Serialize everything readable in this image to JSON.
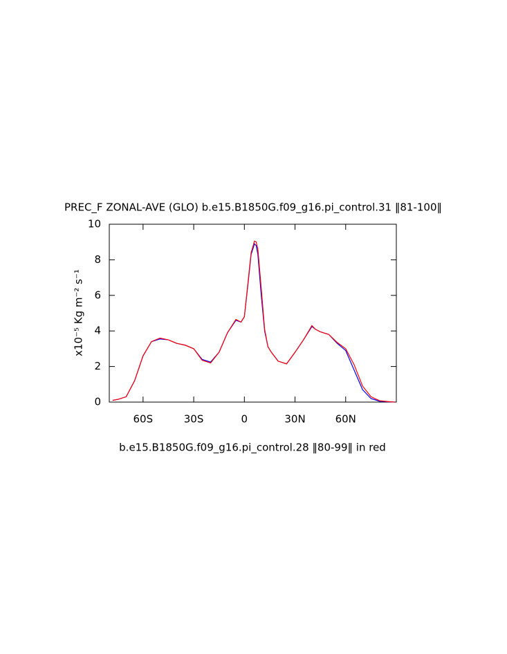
{
  "chart_data": {
    "type": "line",
    "title": "PREC_F ZONAL-AVE (GLO) b.e15.B1850G.f09_g16.pi_control.31 ‖81-100‖",
    "subtitle": "b.e15.B1850G.f09_g16.pi_control.28 ‖80-99‖ in red",
    "y_label": "x10⁻⁵ Kg m⁻² s⁻¹",
    "x": [
      -78,
      -75,
      -70,
      -65,
      -60,
      -55,
      -50,
      -45,
      -40,
      -35,
      -30,
      -25,
      -20,
      -15,
      -10,
      -5,
      -2,
      0,
      2,
      4,
      6,
      7,
      8,
      10,
      12,
      14,
      16,
      20,
      25,
      30,
      35,
      40,
      42,
      45,
      50,
      55,
      60,
      65,
      70,
      75,
      80,
      85,
      89
    ],
    "series": [
      {
        "color": "#0000ff",
        "values": [
          0.1,
          0.15,
          0.3,
          1.2,
          2.6,
          3.4,
          3.55,
          3.5,
          3.3,
          3.2,
          3.0,
          2.4,
          2.25,
          2.8,
          3.9,
          4.6,
          4.5,
          4.8,
          6.5,
          8.3,
          8.9,
          8.8,
          8.3,
          6.0,
          4.0,
          3.1,
          2.8,
          2.3,
          2.15,
          2.8,
          3.5,
          4.25,
          4.1,
          3.95,
          3.8,
          3.3,
          2.9,
          1.8,
          0.7,
          0.2,
          0.05,
          0.02,
          0.0
        ]
      },
      {
        "color": "#ff0000",
        "values": [
          0.1,
          0.15,
          0.3,
          1.2,
          2.6,
          3.4,
          3.6,
          3.5,
          3.3,
          3.2,
          3.0,
          2.35,
          2.2,
          2.8,
          3.9,
          4.65,
          4.5,
          4.8,
          6.6,
          8.4,
          9.05,
          9.0,
          8.6,
          6.4,
          4.1,
          3.1,
          2.8,
          2.3,
          2.15,
          2.8,
          3.5,
          4.3,
          4.1,
          3.95,
          3.8,
          3.35,
          3.0,
          2.1,
          0.9,
          0.3,
          0.08,
          0.03,
          0.0
        ]
      }
    ],
    "xlim": [
      -80,
      90
    ],
    "xticks": [
      {
        "value": -60,
        "label": "60S"
      },
      {
        "value": -30,
        "label": "30S"
      },
      0,
      {
        "value": 30,
        "label": "30N"
      },
      {
        "value": 60,
        "label": "60N"
      }
    ],
    "ylim": [
      0,
      10
    ],
    "yticks": [
      0,
      2,
      4,
      6,
      8,
      10
    ]
  }
}
